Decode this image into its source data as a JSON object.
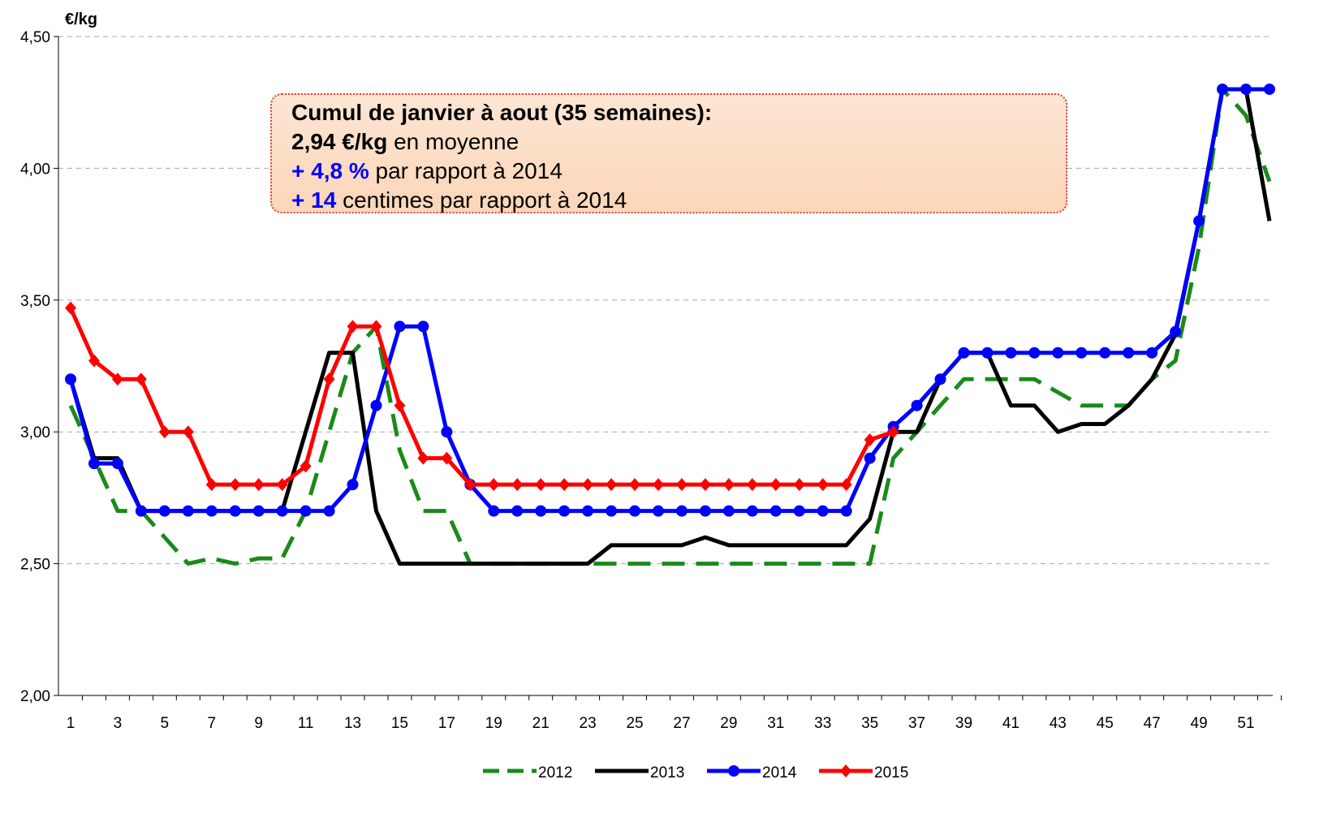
{
  "chart_data": {
    "type": "line",
    "y_label": "€/kg",
    "annotation": {
      "line1": "Cumul de janvier à aout (35 semaines):",
      "line2_bold": "2,94 €/kg",
      "line2_rest": "en moyenne",
      "line3_bold": "+ 4,8 %",
      "line3_rest": "par rapport à 2014",
      "line4_bold": "+ 14",
      "line4_rest": "centimes par rapport à 2014"
    },
    "categories": [
      1,
      null,
      3,
      null,
      5,
      null,
      7,
      null,
      9,
      null,
      11,
      null,
      13,
      null,
      15,
      null,
      17,
      null,
      19,
      null,
      21,
      null,
      23,
      null,
      25,
      null,
      27,
      null,
      29,
      null,
      31,
      null,
      33,
      null,
      35,
      null,
      37,
      null,
      39,
      null,
      41,
      null,
      43,
      null,
      45,
      null,
      47,
      null,
      49,
      null,
      51,
      null
    ],
    "ylim": [
      2.0,
      4.5
    ],
    "yticks": [
      {
        "value": 2.0,
        "label": "2,00"
      },
      {
        "value": 2.5,
        "label": "2,50"
      },
      {
        "value": 3.0,
        "label": "3,00"
      },
      {
        "value": 3.5,
        "label": "3,50"
      },
      {
        "value": 4.0,
        "label": "4,00"
      },
      {
        "value": 4.5,
        "label": "4,50"
      }
    ],
    "grid": true,
    "legend": "bottom",
    "series": [
      {
        "name": "2012",
        "color": "#1a8a1a",
        "dash": true,
        "marker": "none",
        "values": [
          3.1,
          2.9,
          2.7,
          2.7,
          2.6,
          2.5,
          2.52,
          2.5,
          2.52,
          2.52,
          2.7,
          3.0,
          3.3,
          3.4,
          2.93,
          2.7,
          2.7,
          2.5,
          2.5,
          2.5,
          2.5,
          2.5,
          2.5,
          2.5,
          2.5,
          2.5,
          2.5,
          2.5,
          2.5,
          2.5,
          2.5,
          2.5,
          2.5,
          2.5,
          2.5,
          2.9,
          3.0,
          3.1,
          3.2,
          3.2,
          3.2,
          3.2,
          3.15,
          3.1,
          3.1,
          3.1,
          3.2,
          3.27,
          3.7,
          4.3,
          4.2,
          3.95
        ]
      },
      {
        "name": "2013",
        "color": "#000000",
        "dash": false,
        "marker": "none",
        "values": [
          3.2,
          2.9,
          2.9,
          2.7,
          2.7,
          2.7,
          2.7,
          2.7,
          2.7,
          2.7,
          3.0,
          3.3,
          3.3,
          2.7,
          2.5,
          2.5,
          2.5,
          2.5,
          2.5,
          2.5,
          2.5,
          2.5,
          2.5,
          2.57,
          2.57,
          2.57,
          2.57,
          2.6,
          2.57,
          2.57,
          2.57,
          2.57,
          2.57,
          2.57,
          2.67,
          3.0,
          3.0,
          3.2,
          3.3,
          3.3,
          3.1,
          3.1,
          3.0,
          3.03,
          3.03,
          3.1,
          3.2,
          3.37,
          3.8,
          4.3,
          4.3,
          3.8
        ]
      },
      {
        "name": "2014",
        "color": "#0000ff",
        "dash": false,
        "marker": "circle",
        "values": [
          3.2,
          2.88,
          2.88,
          2.7,
          2.7,
          2.7,
          2.7,
          2.7,
          2.7,
          2.7,
          2.7,
          2.7,
          2.8,
          3.1,
          3.4,
          3.4,
          3.0,
          2.8,
          2.7,
          2.7,
          2.7,
          2.7,
          2.7,
          2.7,
          2.7,
          2.7,
          2.7,
          2.7,
          2.7,
          2.7,
          2.7,
          2.7,
          2.7,
          2.7,
          2.9,
          3.02,
          3.1,
          3.2,
          3.3,
          3.3,
          3.3,
          3.3,
          3.3,
          3.3,
          3.3,
          3.3,
          3.3,
          3.38,
          3.8,
          4.3,
          4.3,
          4.3
        ]
      },
      {
        "name": "2015",
        "color": "#ff0000",
        "dash": false,
        "marker": "diamond",
        "values": [
          3.47,
          3.27,
          3.2,
          3.2,
          3.0,
          3.0,
          2.8,
          2.8,
          2.8,
          2.8,
          2.87,
          3.2,
          3.4,
          3.4,
          3.1,
          2.9,
          2.9,
          2.8,
          2.8,
          2.8,
          2.8,
          2.8,
          2.8,
          2.8,
          2.8,
          2.8,
          2.8,
          2.8,
          2.8,
          2.8,
          2.8,
          2.8,
          2.8,
          2.8,
          2.97,
          3.0,
          null,
          null,
          null,
          null,
          null,
          null,
          null,
          null,
          null,
          null,
          null,
          null,
          null,
          null,
          null,
          null
        ]
      }
    ]
  }
}
